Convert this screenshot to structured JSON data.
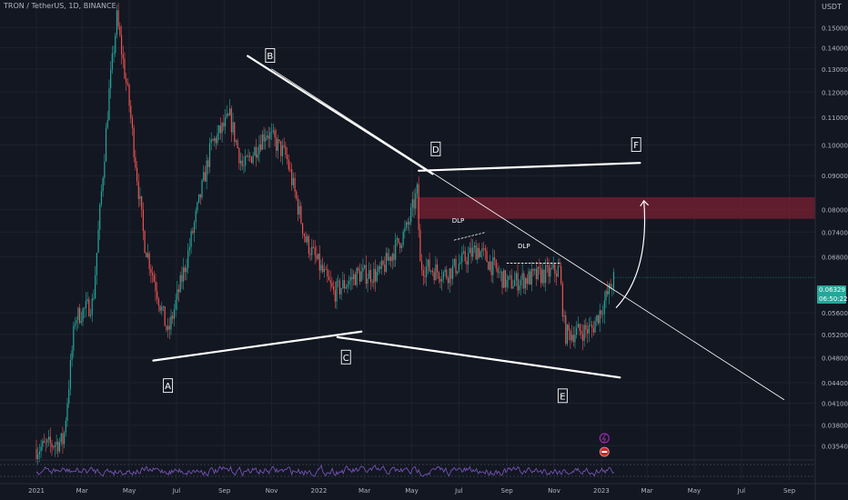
{
  "chart_data": {
    "type": "candlestick",
    "symbol_line": "TRON / TetherUS, 1D, BINANCE",
    "unit": "USDT",
    "y_scale": "log",
    "ylim": [
      0.0338,
      0.165
    ],
    "x_ticks": [
      "2021",
      "Mar",
      "May",
      "Jul",
      "Sep",
      "Nov",
      "2022",
      "Mar",
      "May",
      "Jul",
      "Sep",
      "Nov",
      "2023",
      "Mar",
      "May",
      "Jul",
      "Sep"
    ],
    "y_ticks": [
      "0.15000",
      "0.14000",
      "0.13000",
      "0.12000",
      "0.11000",
      "0.10000",
      "0.09000",
      "0.08000",
      "0.07400",
      "0.06800",
      "0.06329",
      "0.05600",
      "0.05200",
      "0.04800",
      "0.04400",
      "0.04100",
      "0.03800",
      "0.03540"
    ],
    "last_price": "0.06329",
    "last_price_countdown": "06:50:22",
    "close_path": [
      [
        "2021-01-01",
        0.035
      ],
      [
        "2021-02-05",
        0.036
      ],
      [
        "2021-02-20",
        0.055
      ],
      [
        "2021-03-15",
        0.058
      ],
      [
        "2021-04-05",
        0.12
      ],
      [
        "2021-04-15",
        0.155
      ],
      [
        "2021-05-01",
        0.115
      ],
      [
        "2021-05-20",
        0.072
      ],
      [
        "2021-06-20",
        0.052
      ],
      [
        "2021-07-15",
        0.068
      ],
      [
        "2021-08-15",
        0.1
      ],
      [
        "2021-09-08",
        0.11
      ],
      [
        "2021-09-25",
        0.092
      ],
      [
        "2021-10-25",
        0.105
      ],
      [
        "2021-11-20",
        0.096
      ],
      [
        "2021-12-15",
        0.072
      ],
      [
        "2022-01-20",
        0.06
      ],
      [
        "2022-02-20",
        0.064
      ],
      [
        "2022-03-20",
        0.064
      ],
      [
        "2022-04-25",
        0.075
      ],
      [
        "2022-05-08",
        0.085
      ],
      [
        "2022-05-12",
        0.066
      ],
      [
        "2022-06-15",
        0.064
      ],
      [
        "2022-07-25",
        0.07
      ],
      [
        "2022-09-01",
        0.062
      ],
      [
        "2022-10-20",
        0.064
      ],
      [
        "2022-11-08",
        0.065
      ],
      [
        "2022-11-15",
        0.052
      ],
      [
        "2022-12-20",
        0.053
      ],
      [
        "2023-01-10",
        0.06
      ],
      [
        "2023-01-18",
        0.0633
      ]
    ],
    "annotations": [
      {
        "label": "A",
        "anchor": "lower-left pivot"
      },
      {
        "label": "B",
        "anchor": "upper-left pivot"
      },
      {
        "label": "C",
        "anchor": "lower middle pivot"
      },
      {
        "label": "D",
        "anchor": "upper breakdown point"
      },
      {
        "label": "E",
        "anchor": "lower-right pivot"
      },
      {
        "label": "F",
        "anchor": "projected target level"
      },
      {
        "label": "DLP",
        "anchor": "first range"
      },
      {
        "label": "DLP",
        "anchor": "second range"
      }
    ],
    "zone": {
      "from": 0.0775,
      "to": 0.0835,
      "color": "#7a2032"
    },
    "colors": {
      "up": "#26a69a",
      "down": "#ef5350",
      "annotation": "#ffffff",
      "oscillator": "#7e57c2",
      "background": "#131722"
    },
    "lower_panel": "oscillator (purple line)",
    "legend": "none",
    "grid": true
  }
}
